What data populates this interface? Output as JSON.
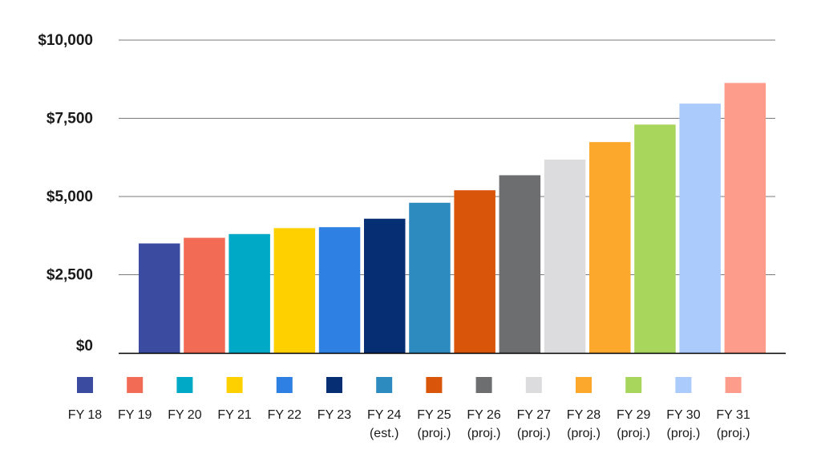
{
  "chart_data": {
    "type": "bar",
    "title": "",
    "xlabel": "",
    "ylabel": "",
    "ylim": [
      0,
      10000
    ],
    "yticks": [
      {
        "value": 0,
        "label": "$0"
      },
      {
        "value": 2500,
        "label": "$2,500"
      },
      {
        "value": 5000,
        "label": "$5,000"
      },
      {
        "value": 7500,
        "label": "$7,500"
      },
      {
        "value": 10000,
        "label": "$10,000"
      }
    ],
    "grid": true,
    "legend_position": "bottom",
    "categories": [
      {
        "label": [
          "FY 18"
        ],
        "value": 3500,
        "color": "#3b4ca0"
      },
      {
        "label": [
          "FY 19"
        ],
        "value": 3680,
        "color": "#f26b55"
      },
      {
        "label": [
          "FY 20"
        ],
        "value": 3800,
        "color": "#00aac7"
      },
      {
        "label": [
          "FY 21"
        ],
        "value": 3990,
        "color": "#ffd000"
      },
      {
        "label": [
          "FY 22"
        ],
        "value": 4020,
        "color": "#2e80e2"
      },
      {
        "label": [
          "FY 23"
        ],
        "value": 4290,
        "color": "#052e73"
      },
      {
        "label": [
          "FY 24",
          "(est.)"
        ],
        "value": 4800,
        "color": "#2d8bbf"
      },
      {
        "label": [
          "FY 25",
          "(proj.)"
        ],
        "value": 5200,
        "color": "#d8550a"
      },
      {
        "label": [
          "FY 26",
          "(proj.)"
        ],
        "value": 5680,
        "color": "#6d6e70"
      },
      {
        "label": [
          "FY 27",
          "(proj.)"
        ],
        "value": 6180,
        "color": "#dcdcde"
      },
      {
        "label": [
          "FY 28",
          "(proj.)"
        ],
        "value": 6740,
        "color": "#fca82d"
      },
      {
        "label": [
          "FY 29",
          "(proj.)"
        ],
        "value": 7300,
        "color": "#a8d65d"
      },
      {
        "label": [
          "FY 30",
          "(proj.)"
        ],
        "value": 7970,
        "color": "#abcbfd"
      },
      {
        "label": [
          "FY 31",
          "(proj.)"
        ],
        "value": 8630,
        "color": "#fd9c8a"
      }
    ]
  }
}
